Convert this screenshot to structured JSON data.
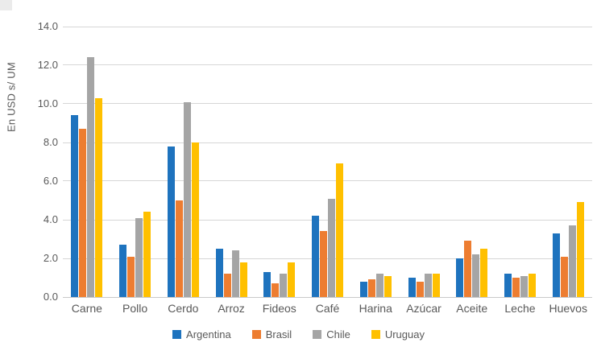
{
  "chart_data": {
    "type": "bar",
    "title": "",
    "xlabel": "",
    "ylabel": "En USD s/ UM",
    "ylim": [
      0,
      14
    ],
    "y_tick_step": 2,
    "y_tick_labels": [
      "0.0",
      "2.0",
      "4.0",
      "6.0",
      "8.0",
      "10.0",
      "12.0",
      "14.0"
    ],
    "grid": "horizontal",
    "legend_position": "bottom",
    "categories": [
      "Carne",
      "Pollo",
      "Cerdo",
      "Arroz",
      "Fideos",
      "Café",
      "Harina",
      "Azúcar",
      "Aceite",
      "Leche",
      "Huevos"
    ],
    "series": [
      {
        "name": "Argentina",
        "color": "#1E73BE",
        "values": [
          9.4,
          2.7,
          7.8,
          2.5,
          1.3,
          4.2,
          0.8,
          1.0,
          2.0,
          1.2,
          3.3
        ]
      },
      {
        "name": "Brasil",
        "color": "#ED7D31",
        "values": [
          8.7,
          2.1,
          5.0,
          1.2,
          0.7,
          3.4,
          0.9,
          0.8,
          2.9,
          1.0,
          2.1
        ]
      },
      {
        "name": "Chile",
        "color": "#A5A5A5",
        "values": [
          12.4,
          4.1,
          10.1,
          2.4,
          1.2,
          5.1,
          1.2,
          1.2,
          2.2,
          1.1,
          3.7
        ]
      },
      {
        "name": "Uruguay",
        "color": "#FFC000",
        "values": [
          10.3,
          4.4,
          8.0,
          1.8,
          1.8,
          6.9,
          1.1,
          1.2,
          2.5,
          1.2,
          4.9
        ]
      }
    ],
    "colors": {
      "gridline": "#d6d6d6",
      "axis_text": "#595959"
    }
  }
}
